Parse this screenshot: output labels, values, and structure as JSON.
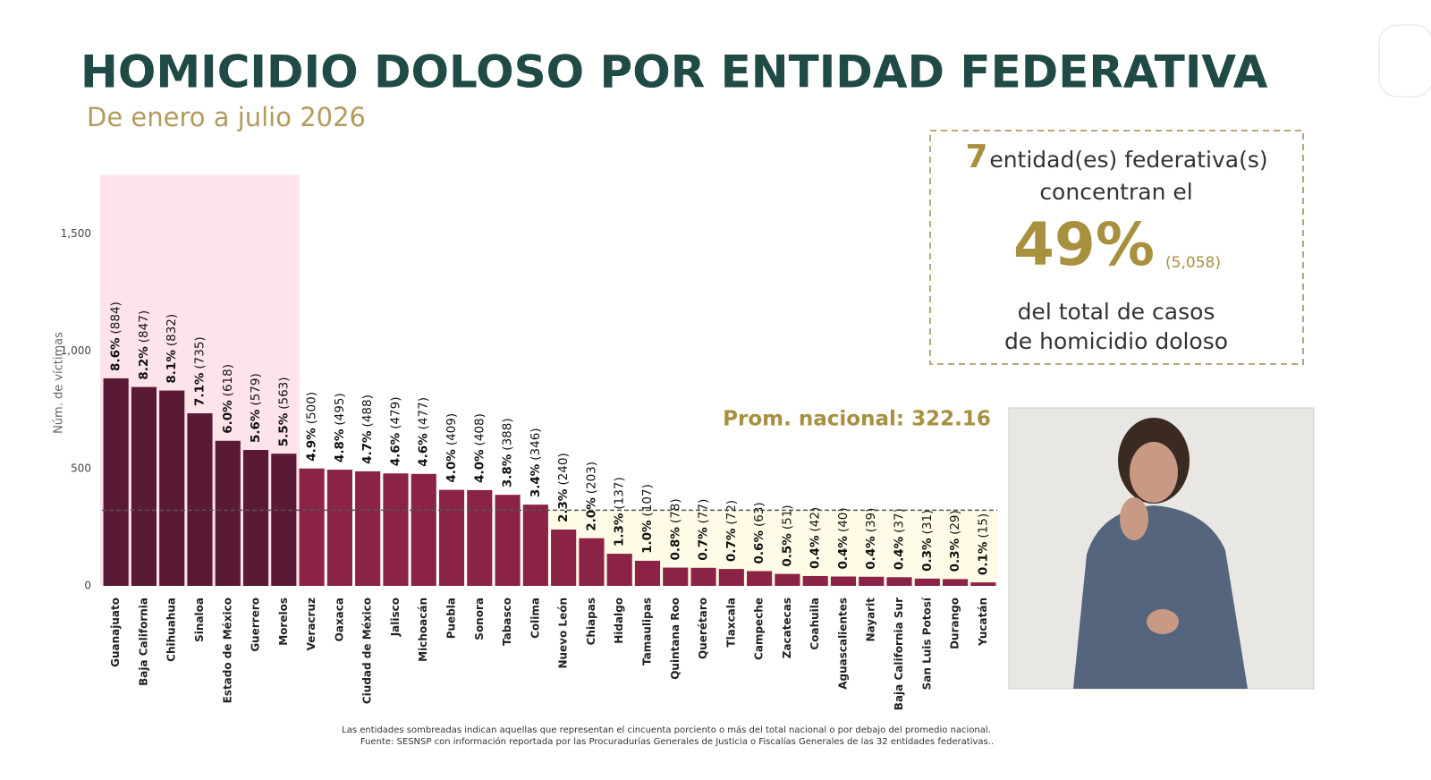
{
  "chart_data": {
    "type": "bar",
    "title": "HOMICIDIO DOLOSO POR ENTIDAD FEDERATIVA",
    "subtitle": "De enero a julio 2026",
    "y_label": "Núm. de víctimas",
    "categories": [
      "Guanajuato",
      "Baja California",
      "Chihuahua",
      "Sinaloa",
      "Estado de México",
      "Guerrero",
      "Morelos",
      "Veracruz",
      "Oaxaca",
      "Ciudad de México",
      "Jalisco",
      "Michoacán",
      "Puebla",
      "Sonora",
      "Tabasco",
      "Colima",
      "Nuevo León",
      "Chiapas",
      "Hidalgo",
      "Tamaulipas",
      "Quintana Roo",
      "Querétaro",
      "Tlaxcala",
      "Campeche",
      "Zacatecas",
      "Coahuila",
      "Aguascalientes",
      "Nayarit",
      "Baja California Sur",
      "San Luis Potosí",
      "Durango",
      "Yucatán"
    ],
    "values": [
      884,
      847,
      832,
      735,
      618,
      579,
      563,
      500,
      495,
      488,
      479,
      477,
      409,
      408,
      388,
      346,
      240,
      203,
      137,
      107,
      78,
      77,
      72,
      63,
      51,
      42,
      40,
      39,
      37,
      31,
      29,
      15
    ],
    "value_labels": [
      "(884)",
      "(847)",
      "(832)",
      "(735)",
      "(618)",
      "(579)",
      "(563)",
      "(500)",
      "(495)",
      "(488)",
      "(479)",
      "(477)",
      "(409)",
      "(408)",
      "(388)",
      "(346)",
      "(240)",
      "(203)",
      "(137)",
      "(107)",
      "(78)",
      "(77)",
      "(72)",
      "(63)",
      "(51)",
      "(42)",
      "(40)",
      "(39)",
      "(37)",
      "(31)",
      "(29)",
      "(15)"
    ],
    "shares": [
      "8.6%",
      "8.2%",
      "8.1%",
      "7.1%",
      "6.0%",
      "5.6%",
      "5.5%",
      "4.9%",
      "4.8%",
      "4.7%",
      "4.6%",
      "4.6%",
      "4.0%",
      "4.0%",
      "3.8%",
      "3.4%",
      "2.3%",
      "2.0%",
      "1.3%",
      "1.0%",
      "0.8%",
      "0.7%",
      "0.7%",
      "0.6%",
      "0.5%",
      "0.4%",
      "0.4%",
      "0.4%",
      "0.4%",
      "0.3%",
      "0.3%",
      "0.1%"
    ],
    "colors": [
      "#5a1a35",
      "#5a1a35",
      "#5a1a35",
      "#5a1a35",
      "#5a1a35",
      "#5a1a35",
      "#5a1a35",
      "#8b2346",
      "#8b2346",
      "#8b2346",
      "#8b2346",
      "#8b2346",
      "#8b2346",
      "#8b2346",
      "#8b2346",
      "#8b2346",
      "#8b2346",
      "#8b2346",
      "#8b2346",
      "#8b2346",
      "#8b2346",
      "#8b2346",
      "#8b2346",
      "#8b2346",
      "#8b2346",
      "#8b2346",
      "#8b2346",
      "#8b2346",
      "#8b2346",
      "#8b2346",
      "#8b2346",
      "#8b2346"
    ],
    "ylim": [
      0,
      1750
    ],
    "yticks": [
      0,
      500,
      {
        "value": 1000,
        "label": "1,000"
      },
      {
        "value": 1500,
        "label": "1,500"
      }
    ],
    "grid": false,
    "average": {
      "value": 322.16,
      "label": "Prom. nacional: 322.16"
    },
    "callout": {
      "count": "7",
      "line1": "entidad(es) federativa(s)",
      "line2": "concentran el",
      "percent": "49%",
      "total": "(5,058)",
      "line3": "del total de casos",
      "line4": "de homicidio doloso"
    },
    "footnotes": [
      "Las entidades sombreadas indican aquellas que representan el cincuenta porciento o más del total nacional o por debajo del promedio nacional.",
      "Fuente: SESNSP con información reportada por las Procuradurías Generales de Justicia o Fiscalías Generales de las 32 entidades federativas.."
    ]
  }
}
